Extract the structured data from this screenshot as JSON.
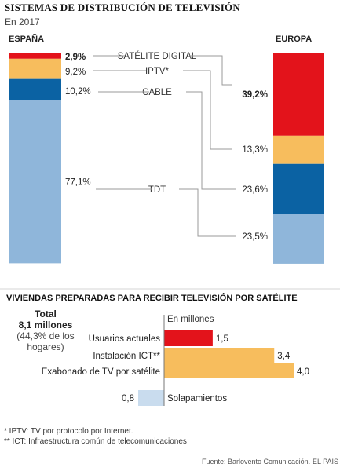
{
  "chart_data": [
    {
      "type": "bar",
      "title": "SISTEMAS DE DISTRIBUCIÓN DE TELEVISIÓN",
      "subtitle": "En 2017",
      "stacked": true,
      "categories": [
        "ESPAÑA",
        "EUROPA"
      ],
      "series": [
        {
          "name": "SATÉLITE DIGITAL",
          "values": [
            2.9,
            39.2
          ],
          "labels": [
            "2,9%",
            "39,2%"
          ],
          "color": "#e3131b"
        },
        {
          "name": "IPTV*",
          "values": [
            9.2,
            13.3
          ],
          "labels": [
            "9,2%",
            "13,3%"
          ],
          "color": "#f7bd5d"
        },
        {
          "name": "CABLE",
          "values": [
            10.2,
            23.6
          ],
          "labels": [
            "10,2%",
            "23,6%"
          ],
          "color": "#0b62a3"
        },
        {
          "name": "TDT",
          "values": [
            77.1,
            23.5
          ],
          "labels": [
            "77,1%",
            "23,5%"
          ],
          "color": "#8fb6da"
        }
      ]
    },
    {
      "type": "bar",
      "title": "VIVIENDAS PREPARADAS PARA RECIBIR TELEVISIÓN POR SATÉLITE",
      "unit": "En millones",
      "total": {
        "title": "Total",
        "value": "8,1 millones",
        "note_line1": "(44,3% de los",
        "note_line2": "hogares)"
      },
      "categories": [
        "Usuarios actuales",
        "Instalación ICT**",
        "Exabonado de TV por satélite",
        "Solapamientos"
      ],
      "values": [
        1.5,
        3.4,
        4.0,
        0.8
      ],
      "labels": [
        "1,5",
        "3,4",
        "4,0",
        "0,8"
      ],
      "colors": [
        "#e3131b",
        "#f7bd5d",
        "#f7bd5d",
        "#c9dcee"
      ]
    }
  ],
  "footnotes": [
    "*  IPTV: TV por protocolo por Internet.",
    "** ICT: Infraestructura común de telecomunicaciones"
  ],
  "source": "Fuente: Barlovento Comunicación.",
  "publisher": "EL PAÍS"
}
